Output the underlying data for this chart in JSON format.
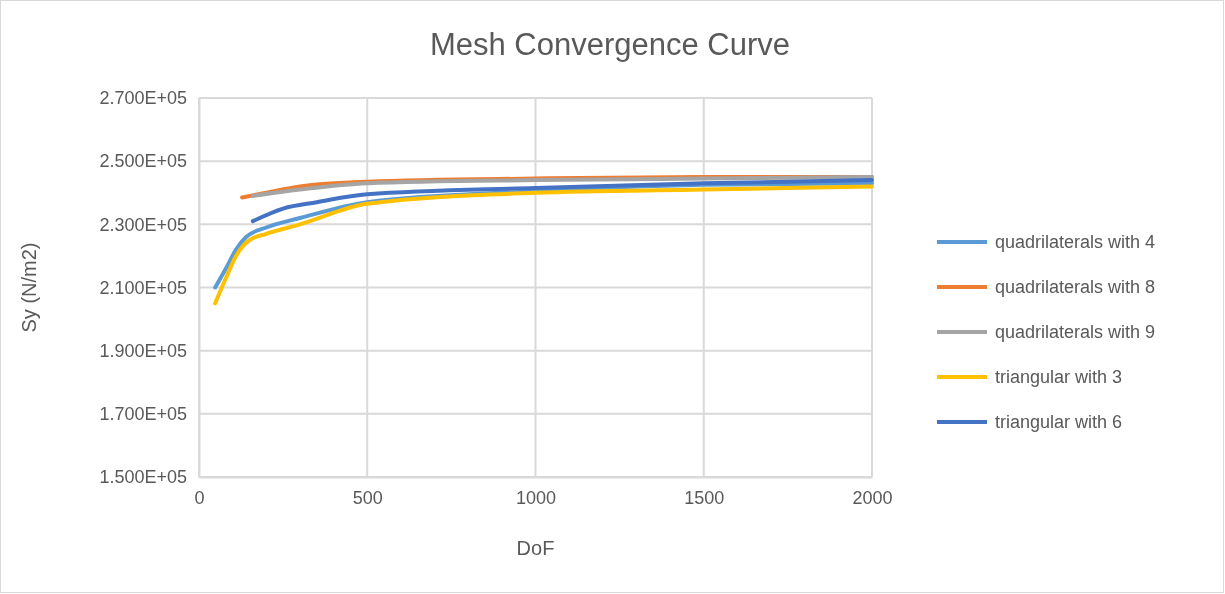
{
  "chart_data": {
    "type": "line",
    "title": "Mesh Convergence Curve",
    "xlabel": "DoF",
    "ylabel": "Sy (N/m2)",
    "xlim": [
      0,
      2000
    ],
    "xticks": [
      0,
      500,
      1000,
      1500,
      2000
    ],
    "ylim": [
      150000,
      270000
    ],
    "yticks": [
      {
        "value": 150000,
        "label": "1.500E+05"
      },
      {
        "value": 170000,
        "label": "1.700E+05"
      },
      {
        "value": 190000,
        "label": "1.900E+05"
      },
      {
        "value": 210000,
        "label": "2.100E+05"
      },
      {
        "value": 230000,
        "label": "2.300E+05"
      },
      {
        "value": 250000,
        "label": "2.500E+05"
      },
      {
        "value": 270000,
        "label": "2.700E+05"
      }
    ],
    "grid": true,
    "legend": "right",
    "marker": "none",
    "line_style": "solid",
    "series": [
      {
        "name": "quadrilaterals with 4",
        "color": "#5b9bd5",
        "x": [
          48,
          80,
          110,
          140,
          200,
          300,
          500,
          1000,
          1500,
          2000
        ],
        "values": [
          210000,
          216000,
          222000,
          226000,
          229000,
          232000,
          237000,
          240500,
          242500,
          243000
        ]
      },
      {
        "name": "quadrilaterals with 8",
        "color": "#ed7d31",
        "x": [
          128,
          200,
          300,
          500,
          1000,
          1500,
          2000
        ],
        "values": [
          238500,
          240000,
          242000,
          243500,
          244500,
          245000,
          245000
        ]
      },
      {
        "name": "quadrilaterals with 9",
        "color": "#a5a5a5",
        "x": [
          160,
          300,
          500,
          1000,
          1500,
          2000
        ],
        "values": [
          239000,
          241000,
          243000,
          244000,
          244500,
          245000
        ]
      },
      {
        "name": "triangular with 3",
        "color": "#ffc000",
        "x": [
          48,
          80,
          110,
          150,
          200,
          300,
          500,
          1000,
          1500,
          2000
        ],
        "values": [
          205000,
          213000,
          220000,
          225000,
          227000,
          230000,
          236500,
          240000,
          241000,
          242000
        ]
      },
      {
        "name": "triangular with 6",
        "color": "#4472c4",
        "x": [
          160,
          250,
          350,
          500,
          1000,
          1500,
          2000
        ],
        "values": [
          231000,
          235000,
          237000,
          239500,
          241500,
          243000,
          244000
        ]
      }
    ]
  }
}
